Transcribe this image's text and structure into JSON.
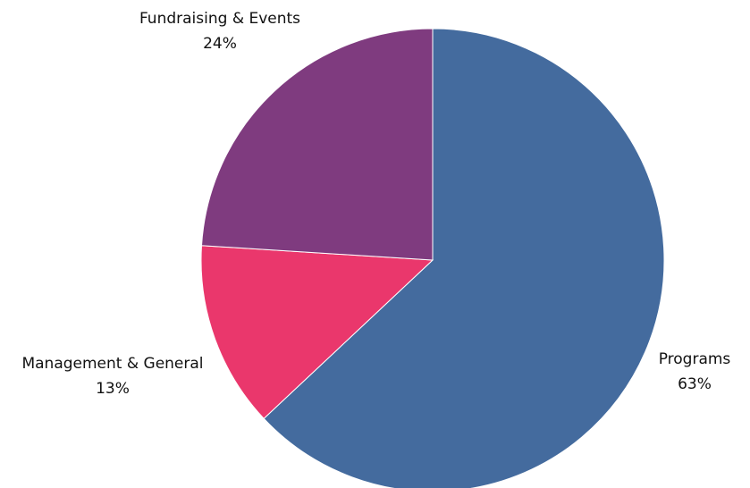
{
  "chart_data": {
    "type": "pie",
    "title": "",
    "legend": "none",
    "slices": [
      {
        "name": "Programs",
        "percent_label": "63%",
        "value": 63,
        "color": "#446b9e"
      },
      {
        "name": "Management & General",
        "percent_label": "13%",
        "value": 13,
        "color": "#ea376c"
      },
      {
        "name": "Fundraising & Events",
        "percent_label": "24%",
        "value": 24,
        "color": "#7f3b7f"
      }
    ]
  }
}
